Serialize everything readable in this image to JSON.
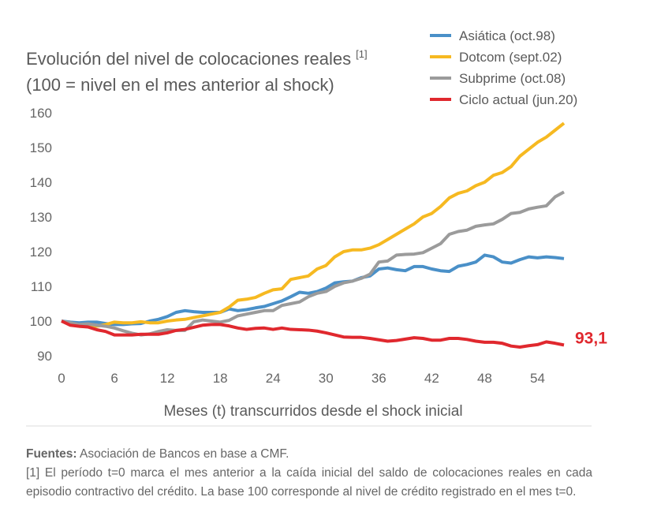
{
  "chart_data": {
    "type": "line",
    "title_lines": [
      "Evolución del nivel de colocaciones reales",
      "(100 = nivel en el mes anterior al shock)"
    ],
    "title_note": "[1]",
    "x_label": "Meses (t) transcurridos desde el shock inicial",
    "x": [
      0,
      1,
      2,
      3,
      4,
      5,
      6,
      7,
      8,
      9,
      10,
      11,
      12,
      13,
      14,
      15,
      16,
      17,
      18,
      19,
      20,
      21,
      22,
      23,
      24,
      25,
      26,
      27,
      28,
      29,
      30,
      31,
      32,
      33,
      34,
      35,
      36,
      37,
      38,
      39,
      40,
      41,
      42,
      43,
      44,
      45,
      46,
      47,
      48,
      49,
      50,
      51,
      52,
      53,
      54,
      55,
      56,
      57
    ],
    "xlim": [
      0,
      57
    ],
    "xticks": [
      0,
      6,
      12,
      18,
      24,
      30,
      36,
      42,
      48,
      54
    ],
    "ylim": [
      90,
      160
    ],
    "yticks": [
      90,
      100,
      110,
      120,
      130,
      140,
      150,
      160
    ],
    "series": [
      {
        "name": "Asiática (oct.98)",
        "color": "#4a90c8",
        "values": [
          100,
          99.7,
          99.5,
          99.7,
          99.7,
          99.3,
          99,
          99,
          99.2,
          99.3,
          100,
          100.5,
          101.3,
          102.5,
          103,
          102.7,
          102.5,
          102.5,
          102.5,
          103.5,
          103,
          103.3,
          103.8,
          104.2,
          105,
          105.8,
          107,
          108.3,
          108,
          108.5,
          109.5,
          111,
          111.3,
          111.5,
          112.5,
          113,
          115,
          115.3,
          114.8,
          114.5,
          115.7,
          115.7,
          115,
          114.5,
          114.3,
          115.8,
          116.3,
          117,
          119,
          118.5,
          117,
          116.7,
          117.7,
          118.5,
          118.2,
          118.5,
          118.3,
          118
        ]
      },
      {
        "name": "Dotcom (sept.02)",
        "color": "#f6b921",
        "values": [
          100,
          99,
          98.5,
          98.5,
          98.5,
          99,
          99.7,
          99.5,
          99.5,
          99.8,
          99.5,
          99.5,
          100,
          100.3,
          100.5,
          101,
          101.5,
          102,
          102.5,
          104,
          106,
          106.3,
          106.8,
          108,
          109,
          109.3,
          112,
          112.5,
          113,
          115,
          116,
          118.5,
          120,
          120.5,
          120.5,
          121,
          122,
          123.5,
          125,
          126.5,
          128,
          130,
          131,
          133,
          135.5,
          136.8,
          137.5,
          139,
          140,
          142,
          142.8,
          144.5,
          147.5,
          149.5,
          151.5,
          153,
          155,
          157
        ]
      },
      {
        "name": "Subprime (oct.08)",
        "color": "#9b9b9b",
        "values": [
          100,
          99.5,
          99,
          99.2,
          98.8,
          98.5,
          98,
          97.2,
          96.5,
          96,
          96.3,
          97,
          97.5,
          97.3,
          97.3,
          99.8,
          100.3,
          100,
          99.7,
          100.2,
          101.5,
          102,
          102.5,
          103,
          103,
          104.5,
          105,
          105.5,
          107,
          108,
          108.5,
          110,
          111,
          111.5,
          112.3,
          113.5,
          117,
          117.3,
          119,
          119.2,
          119.3,
          119.7,
          121,
          122.3,
          125,
          125.8,
          126.2,
          127.3,
          127.7,
          128,
          129.3,
          131,
          131.3,
          132.3,
          132.8,
          133.2,
          135.8,
          137.2
        ]
      },
      {
        "name": "Ciclo actual (jun.20)",
        "color": "#e0282e",
        "values": [
          100,
          98.8,
          98.5,
          98.3,
          97.5,
          97,
          96,
          96,
          96,
          96.2,
          96.2,
          96.2,
          96.6,
          97.3,
          97.6,
          98.2,
          98.8,
          99,
          99,
          98.6,
          98,
          97.6,
          97.9,
          98,
          97.6,
          98,
          97.6,
          97.5,
          97.4,
          97.1,
          96.6,
          96,
          95.4,
          95.3,
          95.3,
          95,
          94.6,
          94.2,
          94.4,
          94.8,
          95.2,
          95,
          94.5,
          94.5,
          95,
          95,
          94.7,
          94.2,
          93.9,
          93.9,
          93.6,
          92.8,
          92.5,
          92.9,
          93.2,
          94,
          93.6,
          93.1
        ],
        "end_label": "93,1"
      }
    ]
  },
  "footer": {
    "sources_label": "Fuentes:",
    "sources_text": "Asociación de Bancos en base a CMF.",
    "note": "[1] El período t=0 marca el mes anterior a la caída inicial del saldo de colocaciones reales en cada episodio contractivo del crédito. La base 100 corresponde al nivel de crédito registrado en el mes t=0."
  }
}
